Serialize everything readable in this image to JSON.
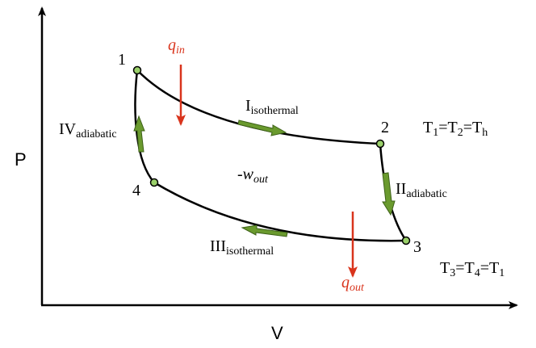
{
  "axes": {
    "y_label": "P",
    "x_label": "V"
  },
  "points": [
    "1",
    "2",
    "3",
    "4"
  ],
  "processes": [
    {
      "numeral": "I",
      "subscript": "isothermal"
    },
    {
      "numeral": "II",
      "subscript": "adiabatic"
    },
    {
      "numeral": "III",
      "subscript": "isothermal"
    },
    {
      "numeral": "IV",
      "subscript": "adiabatic"
    }
  ],
  "heat": {
    "in": {
      "symbol": "q",
      "subscript": "in"
    },
    "out": {
      "symbol": "q",
      "subscript": "out"
    }
  },
  "work": {
    "symbol": "-w",
    "subscript": "out"
  },
  "relations": [
    {
      "relation": "=",
      "terms": [
        {
          "base": "T",
          "sub": "1"
        },
        {
          "base": "T",
          "sub": "2"
        },
        {
          "base": "T",
          "sub": "h"
        }
      ]
    },
    {
      "relation": "=",
      "terms": [
        {
          "base": "T",
          "sub": "3"
        },
        {
          "base": "T",
          "sub": "4"
        },
        {
          "base": "T",
          "sub": "1"
        }
      ]
    }
  ]
}
